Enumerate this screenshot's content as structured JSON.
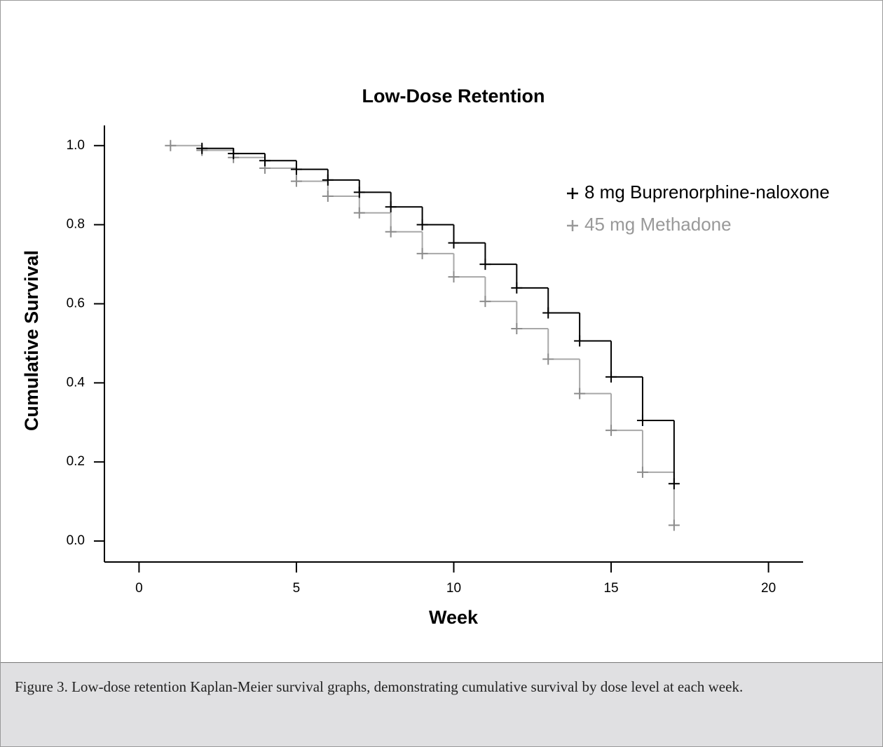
{
  "chart_data": {
    "type": "step",
    "title": "Low-Dose Retention",
    "x_label": "Week",
    "y_label": "Cumulative Survival",
    "xlim": [
      -1.1,
      21.1
    ],
    "xticks": [
      0,
      5,
      10,
      15,
      20
    ],
    "ylim": [
      -0.053,
      1.051
    ],
    "yticks": [
      {
        "value": 0,
        "label": "0.0"
      },
      0.2,
      0.4,
      0.6,
      0.8,
      {
        "value": 1,
        "label": "1.0"
      }
    ],
    "series": [
      {
        "name": "8 mg Buprenorphine-naloxone",
        "color": "#000000",
        "x": [
          2,
          3,
          4,
          5,
          6,
          7,
          8,
          9,
          10,
          11,
          12,
          13,
          14,
          15,
          16,
          17
        ],
        "values": [
          0.993,
          0.98,
          0.962,
          0.94,
          0.913,
          0.882,
          0.845,
          0.8,
          0.754,
          0.7,
          0.64,
          0.577,
          0.506,
          0.415,
          0.305,
          0.145
        ]
      },
      {
        "name": "45 mg Methadone",
        "color": "#a8a8a8",
        "x": [
          1,
          2,
          3,
          4,
          5,
          6,
          7,
          8,
          9,
          10,
          11,
          12,
          13,
          14,
          15,
          16,
          17
        ],
        "values": [
          1.0,
          0.988,
          0.97,
          0.943,
          0.91,
          0.872,
          0.83,
          0.782,
          0.727,
          0.668,
          0.606,
          0.537,
          0.46,
          0.373,
          0.28,
          0.174,
          0.04
        ]
      }
    ]
  },
  "caption": "Figure 3. Low-dose retention Kaplan-Meier survival graphs, demonstrating cumulative survival by dose level at each week."
}
